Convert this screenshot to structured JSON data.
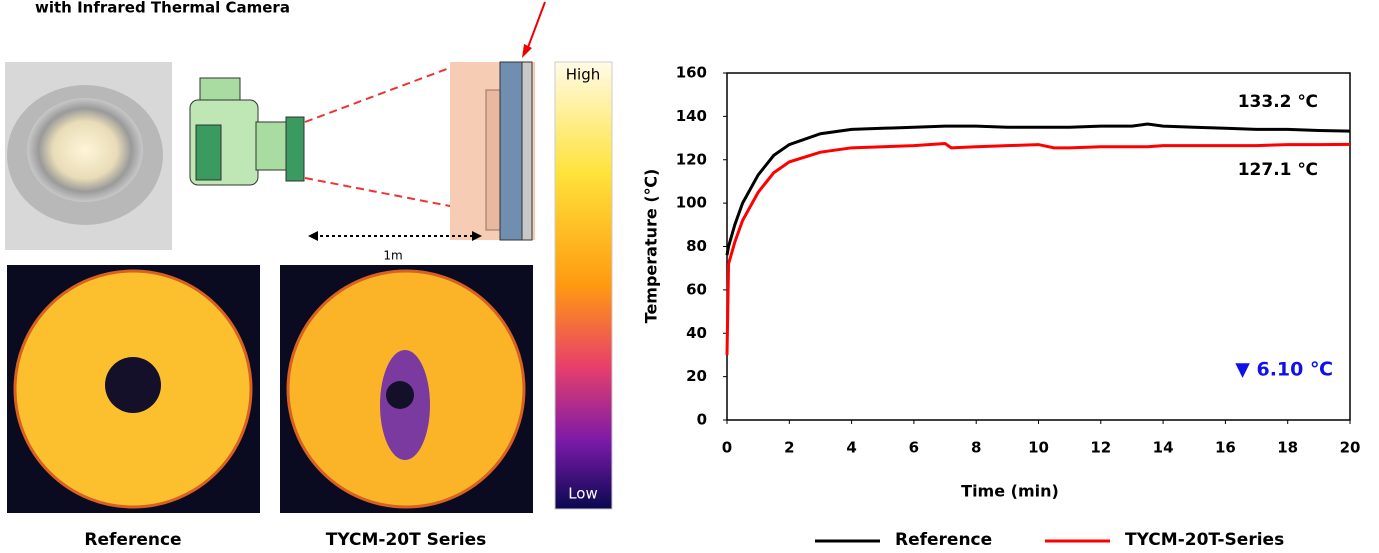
{
  "illustration": {
    "caption": "with Infrared Thermal Camera",
    "distance": "1m",
    "scale_high": "High",
    "scale_low": "Low",
    "images": [
      "Reference",
      "TYCM-20T Series"
    ]
  },
  "chart_data": {
    "type": "line",
    "xlabel": "Time (min)",
    "ylabel": "Temperature (℃)",
    "x": [
      0,
      0.05,
      0.25,
      0.5,
      1,
      1.5,
      2,
      3,
      4,
      5,
      6,
      7,
      7.2,
      8,
      9,
      10,
      10.5,
      11,
      12,
      13,
      13.5,
      14,
      15,
      16,
      17,
      18,
      19,
      20
    ],
    "series": [
      {
        "name": "Reference",
        "color": "#000000",
        "values": [
          76,
          80,
          90,
          100,
          113,
          122,
          127,
          132,
          134,
          134.5,
          135,
          135.5,
          135.5,
          135.5,
          135,
          135,
          135,
          135,
          135.5,
          135.5,
          136.5,
          135.5,
          135,
          134.5,
          134,
          134,
          133.5,
          133.2
        ]
      },
      {
        "name": "TYCM-20T-Series",
        "color": "#ff0000",
        "values": [
          30,
          72,
          82,
          92,
          105,
          114,
          119,
          123.5,
          125.5,
          126,
          126.5,
          127.5,
          125.5,
          126,
          126.5,
          127,
          125.5,
          125.5,
          126,
          126,
          126,
          126.5,
          126.5,
          126.5,
          126.5,
          127,
          127,
          127.1
        ]
      }
    ],
    "annotations": [
      "133.2 ℃",
      "127.1 ℃",
      "▼ 6.10 ℃"
    ],
    "xlim": [
      0,
      20
    ],
    "xticks": [
      0,
      2,
      4,
      6,
      8,
      10,
      12,
      14,
      16,
      18,
      20
    ],
    "ylim": [
      0,
      160
    ],
    "yticks": [
      0,
      20,
      40,
      60,
      80,
      100,
      120,
      140,
      160
    ],
    "grid": false,
    "legend": "bottom"
  }
}
